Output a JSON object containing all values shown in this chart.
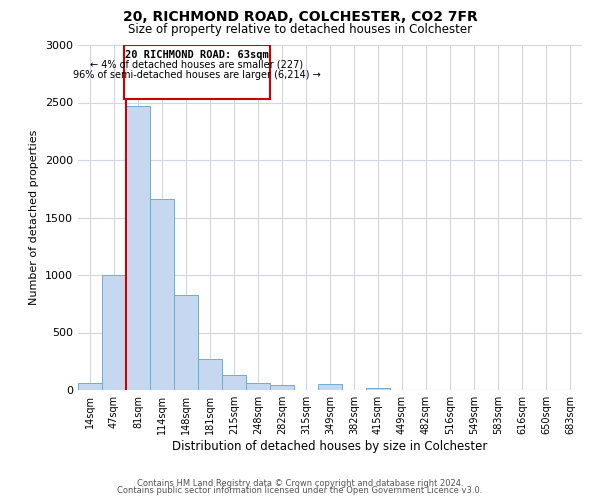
{
  "title": "20, RICHMOND ROAD, COLCHESTER, CO2 7FR",
  "subtitle": "Size of property relative to detached houses in Colchester",
  "xlabel": "Distribution of detached houses by size in Colchester",
  "ylabel": "Number of detached properties",
  "footnote1": "Contains HM Land Registry data © Crown copyright and database right 2024.",
  "footnote2": "Contains public sector information licensed under the Open Government Licence v3.0.",
  "bin_labels": [
    "14sqm",
    "47sqm",
    "81sqm",
    "114sqm",
    "148sqm",
    "181sqm",
    "215sqm",
    "248sqm",
    "282sqm",
    "315sqm",
    "349sqm",
    "382sqm",
    "415sqm",
    "449sqm",
    "482sqm",
    "516sqm",
    "549sqm",
    "583sqm",
    "616sqm",
    "650sqm",
    "683sqm"
  ],
  "bar_values": [
    60,
    1000,
    2470,
    1660,
    830,
    270,
    130,
    60,
    40,
    0,
    50,
    0,
    20,
    0,
    0,
    0,
    0,
    0,
    0,
    0,
    0
  ],
  "bar_color": "#c5d8f0",
  "bar_edge_color": "#6baed6",
  "property_label": "20 RICHMOND ROAD: 63sqm",
  "annotation_line1": "← 4% of detached houses are smaller (227)",
  "annotation_line2": "96% of semi-detached houses are larger (6,214) →",
  "vline_color": "#cc0000",
  "box_color": "#cc0000",
  "ylim": [
    0,
    3000
  ],
  "yticks": [
    0,
    500,
    1000,
    1500,
    2000,
    2500,
    3000
  ],
  "grid_color": "#d0d8e8"
}
